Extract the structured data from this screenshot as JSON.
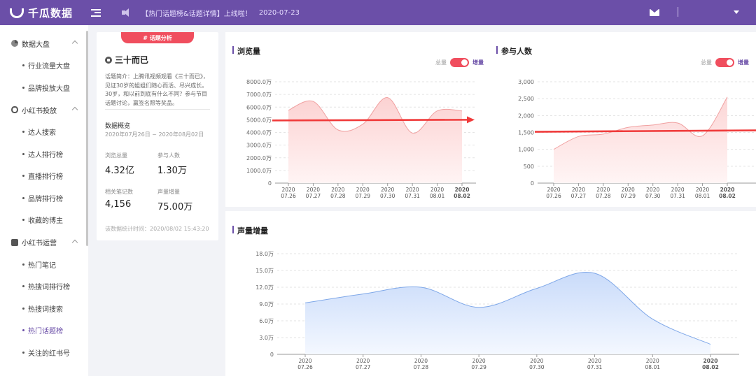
{
  "header": {
    "brand": "千瓜数据",
    "announcement": "【热门话题榜&话题详情】上线啦！",
    "announcement_date": "2020-07-23"
  },
  "sidebar": {
    "groups": [
      {
        "label": "数据大盘",
        "items": [
          "行业流量大盘",
          "品牌投放大盘"
        ]
      },
      {
        "label": "小红书投放",
        "items": [
          "达人搜索",
          "达人排行榜",
          "直播排行榜",
          "品牌排行榜",
          "收藏的博主"
        ]
      },
      {
        "label": "小红书运营",
        "items": [
          "热门笔记",
          "热搜词排行榜",
          "热搜词搜索",
          "热门话题榜",
          "关注的红书号"
        ]
      }
    ],
    "active_item": "热门话题榜"
  },
  "topic": {
    "tag_label": "# 话题分析",
    "title": "三十而已",
    "intro": "话题简介：上腾讯视频观看《三十而已》，见证30岁的姐姐们随心而活、尽兴成长。30岁，和以前到底有什么不同？参与节目话题讨论，赢签名照等奖品。",
    "overview_title": "数据概览",
    "overview_range": "2020年07月26日 ~ 2020年08月02日",
    "stats": [
      {
        "label": "浏览总量",
        "value": "4.32亿"
      },
      {
        "label": "参与人数",
        "value": "1.30万"
      },
      {
        "label": "相关笔记数",
        "value": "4,156"
      },
      {
        "label": "声量增量",
        "value": "75.00万"
      }
    ],
    "stat_time": "该数据统计时间：2020/08/02 15:43:20"
  },
  "toggle": {
    "off_label": "总量",
    "on_label": "增量",
    "state": "增量"
  },
  "colors": {
    "brand": "#6b4fa8",
    "accent": "#f04e5e",
    "blue_line": "#7ea7e8",
    "trend": "#f03b3b"
  },
  "chart_data": [
    {
      "type": "area",
      "title": "浏览量",
      "x": [
        "2020\n07.26",
        "2020\n07.27",
        "2020\n07.28",
        "2020\n07.29",
        "2020\n07.30",
        "2020\n07.31",
        "2020\n08.01",
        "2020\n08.02"
      ],
      "y_ticks": [
        "0",
        "1000.0万",
        "2000.0万",
        "3000.0万",
        "4000.0万",
        "5000.0万",
        "6000.0万",
        "7000.0万",
        "8000.0万"
      ],
      "ylim": [
        0,
        8000
      ],
      "values": [
        5750,
        6450,
        4200,
        4650,
        6750,
        3950,
        5700,
        5700
      ],
      "trend": [
        4950,
        5000
      ],
      "grid": true
    },
    {
      "type": "area",
      "title": "参与人数",
      "x": [
        "2020\n07.26",
        "2020\n07.27",
        "2020\n07.28",
        "2020\n07.29",
        "2020\n07.30",
        "2020\n07.31",
        "2020\n08.01",
        "2020\n08.02"
      ],
      "y_ticks": [
        "0",
        "500",
        "1,000",
        "1,500",
        "2,000",
        "2,500",
        "3,000"
      ],
      "ylim": [
        0,
        3000
      ],
      "values": [
        1000,
        1380,
        1450,
        1650,
        1720,
        1780,
        1400,
        2550
      ],
      "trend": [
        1520,
        1600
      ],
      "grid": true
    },
    {
      "type": "area",
      "title": "声量增量",
      "x": [
        "2020\n07.26",
        "2020\n07.27",
        "2020\n07.28",
        "2020\n07.29",
        "2020\n07.30",
        "2020\n07.31",
        "2020\n08.01",
        "2020\n08.02"
      ],
      "y_ticks": [
        "0",
        "3.0万",
        "6.0万",
        "9.0万",
        "12.0万",
        "15.0万",
        "18.0万"
      ],
      "ylim": [
        0,
        18
      ],
      "values": [
        9.2,
        10.8,
        12.0,
        8.4,
        11.8,
        14.5,
        6.3,
        1.8
      ],
      "grid": true
    }
  ]
}
